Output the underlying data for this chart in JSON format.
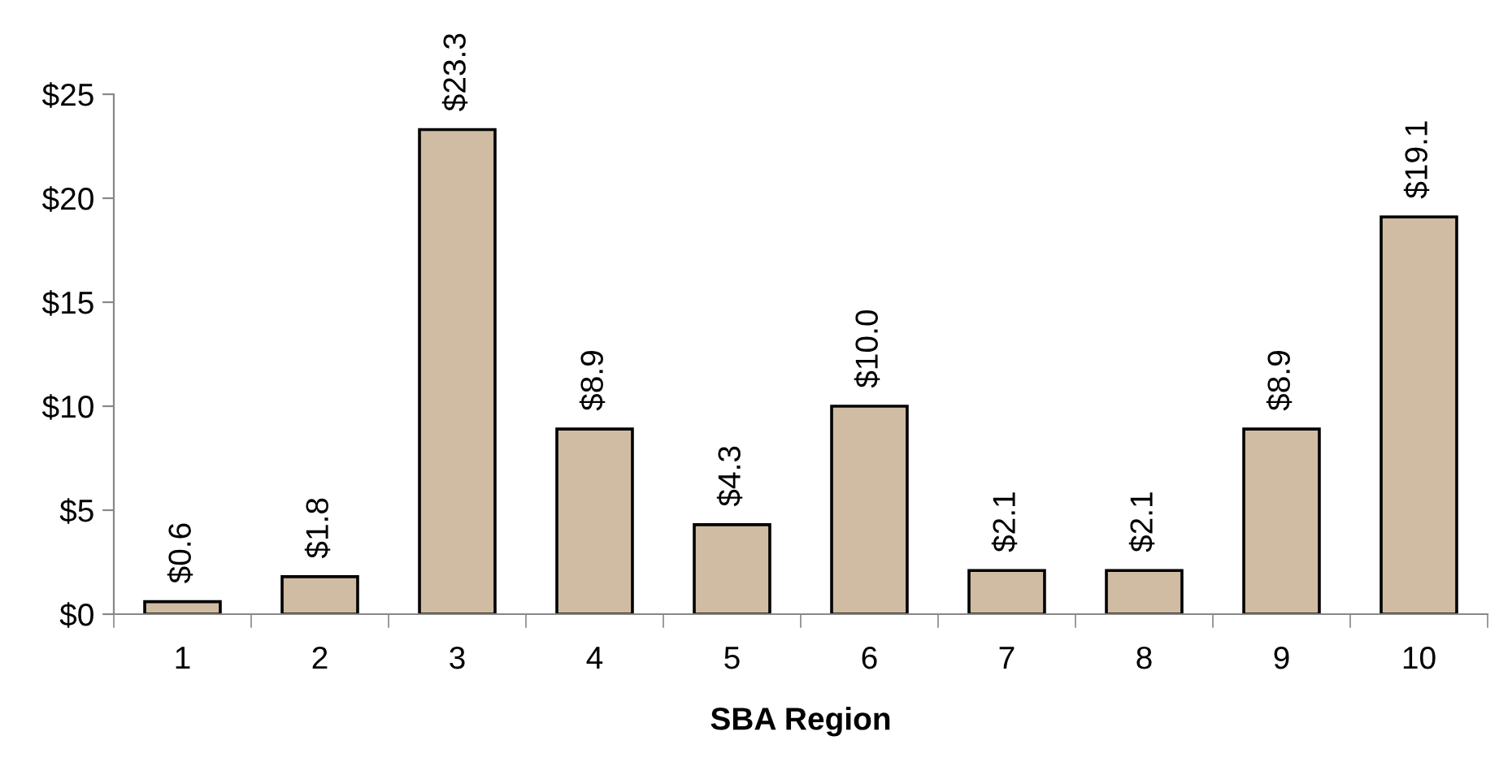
{
  "chart_data": {
    "type": "bar",
    "xlabel": "SBA Region",
    "categories": [
      "1",
      "2",
      "3",
      "4",
      "5",
      "6",
      "7",
      "8",
      "9",
      "10"
    ],
    "values": [
      0.6,
      1.8,
      23.3,
      8.9,
      4.3,
      10.0,
      2.1,
      2.1,
      8.9,
      19.1
    ],
    "value_labels": [
      "$0.6",
      "$1.8",
      "$23.3",
      "$8.9",
      "$4.3",
      "$10.0",
      "$2.1",
      "$2.1",
      "$8.9",
      "$19.1"
    ],
    "color": "#cfbca3",
    "ylim": [
      0,
      25
    ],
    "yticks": [
      {
        "value": 0,
        "label": "$0"
      },
      {
        "value": 5,
        "label": "$5"
      },
      {
        "value": 10,
        "label": "$10"
      },
      {
        "value": 15,
        "label": "$15"
      },
      {
        "value": 20,
        "label": "$20"
      },
      {
        "value": 25,
        "label": "$25"
      }
    ],
    "grid": false,
    "legend": false
  }
}
